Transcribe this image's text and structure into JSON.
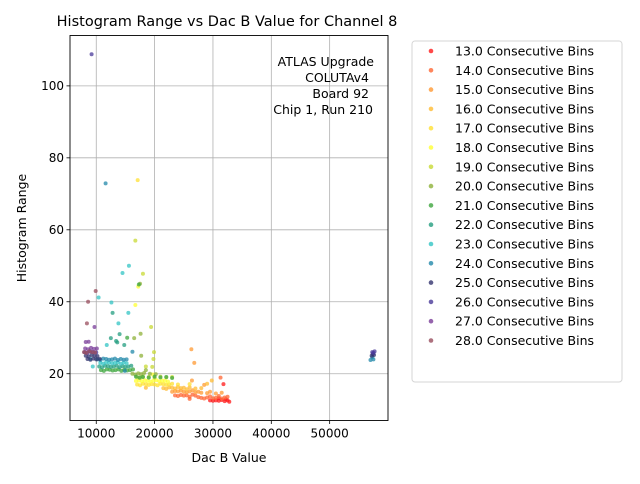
{
  "chart_data": {
    "type": "scatter",
    "title": "Histogram Range vs Dac B Value for Channel 8",
    "xlabel": "Dac B Value",
    "ylabel": "Histogram Range",
    "xlim": [
      5500,
      60000
    ],
    "ylim": [
      7,
      114
    ],
    "xticks": [
      10000,
      20000,
      30000,
      40000,
      50000
    ],
    "yticks": [
      20,
      40,
      60,
      80,
      100
    ],
    "grid": true,
    "legend_position": "outside-right",
    "annotation": [
      "ATLAS Upgrade",
      "COLUTAv4",
      "Board 92",
      "Chip 1, Run 210"
    ],
    "series": [
      {
        "name": "13.0 Consecutive Bins",
        "color": "#ff1a1a",
        "points": [
          [
            29500,
            12.6
          ],
          [
            30000,
            12.5
          ],
          [
            30500,
            12.6
          ],
          [
            31000,
            12.5
          ],
          [
            31500,
            12.7
          ],
          [
            32000,
            12.4
          ],
          [
            32500,
            12.6
          ],
          [
            32800,
            12.2
          ],
          [
            31000,
            13.2
          ],
          [
            31800,
            17.1
          ],
          [
            32200,
            12.9
          ]
        ]
      },
      {
        "name": "14.0 Consecutive Bins",
        "color": "#ff6633",
        "points": [
          [
            23500,
            14.0
          ],
          [
            24000,
            13.8
          ],
          [
            24500,
            14.1
          ],
          [
            25000,
            13.9
          ],
          [
            25500,
            14.0
          ],
          [
            26000,
            13.6
          ],
          [
            26500,
            14.2
          ],
          [
            27000,
            13.9
          ],
          [
            27500,
            13.5
          ],
          [
            28000,
            13.3
          ],
          [
            28500,
            13.1
          ],
          [
            29000,
            13.4
          ],
          [
            29500,
            13.7
          ],
          [
            30000,
            13.2
          ],
          [
            30500,
            13.3
          ],
          [
            31000,
            13.8
          ],
          [
            31500,
            13.1
          ],
          [
            32000,
            13.4
          ],
          [
            32500,
            13.6
          ],
          [
            26000,
            13.0
          ],
          [
            31300,
            18.9
          ]
        ]
      },
      {
        "name": "15.0 Consecutive Bins",
        "color": "#ff9933",
        "points": [
          [
            23000,
            15.0
          ],
          [
            23500,
            15.2
          ],
          [
            24000,
            15.1
          ],
          [
            24500,
            15.3
          ],
          [
            25000,
            15.0
          ],
          [
            25500,
            14.8
          ],
          [
            26000,
            15.1
          ],
          [
            26500,
            15.4
          ],
          [
            27000,
            14.9
          ],
          [
            27500,
            15.0
          ],
          [
            28000,
            14.7
          ],
          [
            28500,
            16.9
          ],
          [
            29000,
            14.6
          ],
          [
            29500,
            15.0
          ],
          [
            30500,
            14.5
          ],
          [
            31500,
            14.7
          ],
          [
            26300,
            26.8
          ],
          [
            26800,
            23.0
          ],
          [
            26400,
            18.1
          ]
        ]
      },
      {
        "name": "16.0 Consecutive Bins",
        "color": "#ffbb33",
        "points": [
          [
            21500,
            16.0
          ],
          [
            22000,
            15.8
          ],
          [
            22500,
            16.2
          ],
          [
            23000,
            16.1
          ],
          [
            23500,
            15.9
          ],
          [
            24000,
            16.3
          ],
          [
            24500,
            16.0
          ],
          [
            25000,
            16.1
          ],
          [
            25500,
            15.7
          ],
          [
            26000,
            16.2
          ],
          [
            27000,
            15.9
          ],
          [
            28000,
            16.0
          ],
          [
            29000,
            17.2
          ],
          [
            29800,
            18.1
          ],
          [
            18500,
            16.1
          ]
        ]
      },
      {
        "name": "17.0 Consecutive Bins",
        "color": "#ffe033",
        "points": [
          [
            17000,
            17.0
          ],
          [
            17500,
            16.8
          ],
          [
            18000,
            17.2
          ],
          [
            18500,
            17.1
          ],
          [
            19000,
            16.9
          ],
          [
            19500,
            17.1
          ],
          [
            20000,
            17.0
          ],
          [
            20500,
            16.8
          ],
          [
            21000,
            17.2
          ],
          [
            21500,
            17.1
          ],
          [
            22000,
            16.9
          ],
          [
            22500,
            17.0
          ],
          [
            23000,
            17.2
          ],
          [
            24000,
            17.0
          ],
          [
            26000,
            17.1
          ],
          [
            17100,
            73.8
          ]
        ]
      },
      {
        "name": "18.0 Consecutive Bins",
        "color": "#ffff33",
        "points": [
          [
            16800,
            18.0
          ],
          [
            17300,
            18.1
          ],
          [
            17800,
            17.9
          ],
          [
            18300,
            18.2
          ],
          [
            18800,
            18.0
          ],
          [
            19300,
            17.8
          ],
          [
            19800,
            18.1
          ],
          [
            20300,
            18.2
          ],
          [
            20800,
            17.9
          ],
          [
            21300,
            18.1
          ],
          [
            21800,
            18.0
          ],
          [
            22300,
            17.8
          ],
          [
            16700,
            39.1
          ],
          [
            17200,
            44.2
          ],
          [
            19700,
            19.8
          ]
        ]
      },
      {
        "name": "19.0 Consecutive Bins",
        "color": "#c8d934",
        "points": [
          [
            17000,
            19.0
          ],
          [
            17500,
            18.8
          ],
          [
            18000,
            19.2
          ],
          [
            19000,
            19.1
          ],
          [
            20000,
            18.9
          ],
          [
            21000,
            19.2
          ],
          [
            22000,
            19.0
          ],
          [
            23000,
            19.1
          ],
          [
            16700,
            57.0
          ],
          [
            18000,
            47.8
          ],
          [
            19400,
            33.0
          ],
          [
            19600,
            21.9
          ],
          [
            18500,
            22.0
          ],
          [
            19800,
            24.1
          ],
          [
            19900,
            26.0
          ]
        ]
      },
      {
        "name": "20.0 Consecutive Bins",
        "color": "#8fb239",
        "points": [
          [
            16200,
            20.0
          ],
          [
            16700,
            19.8
          ],
          [
            17200,
            20.1
          ],
          [
            17700,
            19.9
          ],
          [
            18200,
            20.2
          ],
          [
            19200,
            20.0
          ],
          [
            20200,
            19.9
          ],
          [
            17500,
            45.0
          ],
          [
            18500,
            21.0
          ],
          [
            17600,
            31.1
          ],
          [
            16500,
            29.9
          ],
          [
            17700,
            25.0
          ]
        ]
      },
      {
        "name": "21.0 Consecutive Bins",
        "color": "#3da53d",
        "points": [
          [
            10800,
            21.0
          ],
          [
            11300,
            20.8
          ],
          [
            11800,
            21.2
          ],
          [
            12300,
            21.1
          ],
          [
            12800,
            20.9
          ],
          [
            13300,
            21.0
          ],
          [
            13800,
            21.2
          ],
          [
            14300,
            20.8
          ],
          [
            14800,
            21.1
          ],
          [
            15300,
            20.9
          ],
          [
            15800,
            21.0
          ],
          [
            16300,
            21.2
          ],
          [
            16800,
            19.2
          ],
          [
            17400,
            18.9
          ],
          [
            18000,
            19.1
          ],
          [
            19000,
            18.9
          ],
          [
            20000,
            19.2
          ],
          [
            21000,
            19.0
          ],
          [
            22000,
            19.1
          ],
          [
            23000,
            18.8
          ],
          [
            15300,
            30.0
          ],
          [
            17300,
            44.8
          ]
        ]
      },
      {
        "name": "22.0 Consecutive Bins",
        "color": "#249e80",
        "points": [
          [
            10500,
            22.0
          ],
          [
            11000,
            21.8
          ],
          [
            11500,
            22.2
          ],
          [
            12000,
            22.1
          ],
          [
            12500,
            21.9
          ],
          [
            13000,
            22.0
          ],
          [
            13500,
            22.2
          ],
          [
            14000,
            21.8
          ],
          [
            14500,
            22.1
          ],
          [
            15000,
            21.9
          ],
          [
            15500,
            22.0
          ],
          [
            16000,
            22.2
          ],
          [
            12800,
            36.9
          ],
          [
            13400,
            29.1
          ],
          [
            14000,
            31.0
          ],
          [
            14800,
            28.0
          ],
          [
            12500,
            29.9
          ],
          [
            13600,
            28.7
          ]
        ]
      },
      {
        "name": "23.0 Consecutive Bins",
        "color": "#33c4c4",
        "points": [
          [
            10700,
            23.0
          ],
          [
            11200,
            22.8
          ],
          [
            11700,
            23.2
          ],
          [
            12200,
            23.1
          ],
          [
            12700,
            22.9
          ],
          [
            13200,
            23.0
          ],
          [
            13700,
            23.2
          ],
          [
            14200,
            22.8
          ],
          [
            14700,
            23.1
          ],
          [
            15200,
            22.9
          ],
          [
            9400,
            22.0
          ],
          [
            9000,
            24.1
          ],
          [
            15600,
            50.0
          ],
          [
            14500,
            48.0
          ],
          [
            13800,
            34.0
          ],
          [
            15500,
            36.9
          ],
          [
            12600,
            39.8
          ],
          [
            11800,
            28.0
          ],
          [
            10400,
            41.2
          ]
        ]
      },
      {
        "name": "24.0 Consecutive Bins",
        "color": "#2288aa",
        "points": [
          [
            10200,
            24.0
          ],
          [
            10700,
            23.8
          ],
          [
            11200,
            24.2
          ],
          [
            11700,
            24.1
          ],
          [
            12200,
            23.9
          ],
          [
            12700,
            24.0
          ],
          [
            13200,
            24.2
          ],
          [
            13700,
            23.8
          ],
          [
            14200,
            24.1
          ],
          [
            14700,
            23.9
          ],
          [
            15200,
            24.0
          ],
          [
            11600,
            72.9
          ],
          [
            16200,
            26.1
          ],
          [
            14900,
            20.8
          ],
          [
            57500,
            24.0
          ],
          [
            57300,
            24.6
          ],
          [
            57000,
            23.8
          ]
        ]
      },
      {
        "name": "25.0 Consecutive Bins",
        "color": "#33336e",
        "points": [
          [
            8200,
            25.0
          ],
          [
            8700,
            24.8
          ],
          [
            9200,
            25.2
          ],
          [
            9700,
            25.0
          ],
          [
            10200,
            24.9
          ],
          [
            8500,
            24.1
          ],
          [
            9000,
            23.9
          ],
          [
            9500,
            24.2
          ],
          [
            10000,
            24.0
          ],
          [
            10600,
            24.1
          ],
          [
            57200,
            25.0
          ],
          [
            57600,
            25.2
          ],
          [
            57400,
            25.5
          ]
        ]
      },
      {
        "name": "26.0 Consecutive Bins",
        "color": "#4a3a99",
        "points": [
          [
            8000,
            26.0
          ],
          [
            8500,
            25.8
          ],
          [
            9000,
            26.2
          ],
          [
            9500,
            26.0
          ],
          [
            10000,
            25.9
          ],
          [
            9200,
            108.8
          ],
          [
            57300,
            26.0
          ],
          [
            57700,
            26.2
          ],
          [
            57500,
            25.8
          ]
        ]
      },
      {
        "name": "27.0 Consecutive Bins",
        "color": "#7a3d99",
        "points": [
          [
            8100,
            27.0
          ],
          [
            8600,
            26.8
          ],
          [
            9100,
            27.2
          ],
          [
            9600,
            26.9
          ],
          [
            10100,
            27.0
          ],
          [
            9700,
            33.0
          ],
          [
            8200,
            28.8
          ],
          [
            8700,
            28.9
          ]
        ]
      },
      {
        "name": "28.0 Consecutive Bins",
        "color": "#994d5e",
        "points": [
          [
            7900,
            26.0
          ],
          [
            8300,
            25.8
          ],
          [
            8800,
            26.2
          ],
          [
            9300,
            26.0
          ],
          [
            9800,
            25.9
          ],
          [
            8400,
            34.0
          ],
          [
            9900,
            43.0
          ],
          [
            8600,
            40.0
          ]
        ]
      }
    ]
  }
}
